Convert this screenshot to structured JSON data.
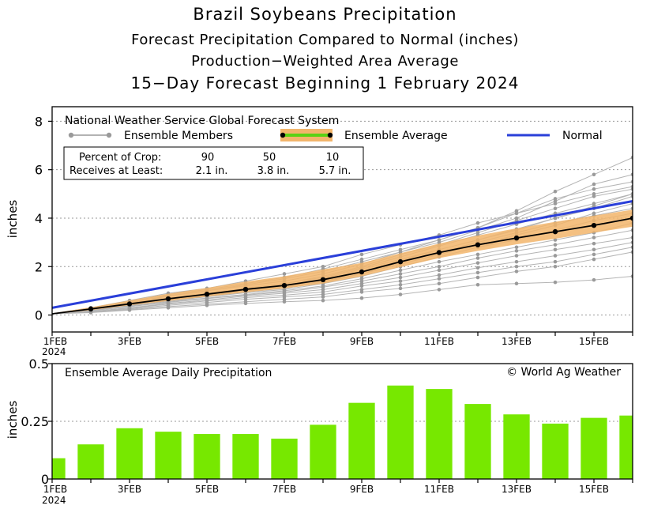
{
  "titles": {
    "line1": "Brazil Soybeans Precipitation",
    "line2": "Forecast Precipitation Compared to Normal (inches)",
    "line3": "Production−Weighted Area Average",
    "line4": "15−Day Forecast Beginning 1 February 2024"
  },
  "top_panel": {
    "model_label": "National Weather Service Global Forecast System",
    "legend": {
      "members": "Ensemble Members",
      "average": "Ensemble Average",
      "normal": "Normal"
    },
    "crop_box": {
      "row1_label": "Percent of Crop:",
      "row2_label": "Receives at Least:",
      "percents": [
        "90",
        "50",
        "10"
      ],
      "amounts": [
        "2.1 in.",
        "3.8 in.",
        "5.7 in."
      ]
    }
  },
  "bottom_panel": {
    "label": "Ensemble Average Daily Precipitation",
    "copyright": "© World Ag Weather"
  },
  "colors": {
    "normal": "#2a3fd9",
    "members": "#b4b4b4",
    "member_points": "#9a9a9a",
    "spread": "#f2b56b",
    "bars": "#77e800",
    "legend_avg_green": "#5ad214"
  },
  "chart_data": [
    {
      "type": "line",
      "title": "Forecast Precipitation Compared to Normal (inches)",
      "ylabel": "inches",
      "xlabel": "",
      "ylim": [
        -0.7,
        8.6
      ],
      "yticks": [
        "0",
        "2",
        "4",
        "6",
        "8"
      ],
      "x_tick_labels": [
        "1FEB",
        "3FEB",
        "5FEB",
        "7FEB",
        "9FEB",
        "11FEB",
        "13FEB",
        "15FEB"
      ],
      "x_tick_year": "2024",
      "x_day_range": [
        1,
        16
      ],
      "grid": "horizontal-dotted",
      "series": [
        {
          "name": "Ensemble Average",
          "x": [
            1,
            2,
            3,
            4,
            5,
            6,
            7,
            8,
            9,
            10,
            11,
            12,
            13,
            14,
            15,
            16
          ],
          "values": [
            0.05,
            0.25,
            0.46,
            0.67,
            0.86,
            1.06,
            1.22,
            1.46,
            1.78,
            2.2,
            2.58,
            2.9,
            3.18,
            3.44,
            3.7,
            4.0
          ]
        },
        {
          "name": "Normal",
          "x": [
            1,
            16
          ],
          "values": [
            0.3,
            4.7
          ]
        },
        {
          "name": "Ensemble Spread Lower",
          "x": [
            1,
            2,
            3,
            4,
            5,
            6,
            7,
            8,
            9,
            10,
            11,
            12,
            13,
            14,
            15,
            16
          ],
          "values": [
            0.04,
            0.2,
            0.4,
            0.58,
            0.76,
            0.94,
            1.1,
            1.3,
            1.6,
            1.98,
            2.35,
            2.65,
            2.92,
            3.15,
            3.4,
            3.65
          ]
        },
        {
          "name": "Ensemble Spread Upper",
          "x": [
            1,
            2,
            3,
            4,
            5,
            6,
            7,
            8,
            9,
            10,
            11,
            12,
            13,
            14,
            15,
            16
          ],
          "values": [
            0.07,
            0.32,
            0.6,
            0.88,
            1.12,
            1.38,
            1.6,
            1.88,
            2.15,
            2.55,
            2.95,
            3.28,
            3.58,
            3.85,
            4.1,
            4.35
          ]
        }
      ],
      "ensemble_members": [
        [
          0.05,
          0.3,
          0.55,
          0.85,
          1.05,
          1.3,
          1.55,
          1.9,
          2.3,
          2.7,
          3.1,
          3.6,
          4.3,
          5.1,
          5.8,
          6.5
        ],
        [
          0.05,
          0.28,
          0.5,
          0.78,
          1.0,
          1.25,
          1.5,
          1.8,
          2.2,
          2.6,
          3.0,
          3.5,
          4.0,
          4.7,
          5.4,
          5.8
        ],
        [
          0.05,
          0.25,
          0.5,
          0.8,
          1.0,
          1.2,
          1.4,
          1.7,
          2.1,
          2.6,
          3.1,
          3.6,
          4.2,
          4.8,
          5.2,
          5.5
        ],
        [
          0.05,
          0.3,
          0.6,
          0.9,
          1.1,
          1.4,
          1.7,
          2.0,
          2.5,
          2.9,
          3.3,
          3.8,
          4.2,
          4.6,
          5.0,
          5.3
        ],
        [
          0.05,
          0.25,
          0.45,
          0.7,
          0.9,
          1.1,
          1.3,
          1.6,
          2.0,
          2.5,
          2.9,
          3.4,
          3.9,
          4.4,
          4.9,
          5.2
        ],
        [
          0.05,
          0.22,
          0.42,
          0.65,
          0.85,
          1.05,
          1.2,
          1.5,
          1.9,
          2.3,
          2.7,
          3.1,
          3.5,
          4.0,
          4.4,
          4.9
        ],
        [
          0.05,
          0.2,
          0.4,
          0.62,
          0.8,
          1.0,
          1.15,
          1.4,
          1.7,
          2.1,
          2.5,
          2.9,
          3.3,
          3.7,
          4.2,
          4.6
        ],
        [
          0.05,
          0.2,
          0.38,
          0.58,
          0.75,
          0.92,
          1.05,
          1.3,
          1.6,
          2.0,
          2.4,
          2.8,
          3.1,
          3.5,
          3.9,
          4.2
        ],
        [
          0.05,
          0.18,
          0.35,
          0.55,
          0.7,
          0.85,
          1.0,
          1.2,
          1.5,
          1.85,
          2.2,
          2.5,
          2.8,
          3.1,
          3.4,
          3.8
        ],
        [
          0.05,
          0.18,
          0.35,
          0.52,
          0.68,
          0.82,
          0.95,
          1.15,
          1.4,
          1.7,
          2.0,
          2.35,
          2.65,
          2.9,
          3.2,
          3.5
        ],
        [
          0.05,
          0.15,
          0.3,
          0.48,
          0.62,
          0.78,
          0.9,
          1.05,
          1.3,
          1.55,
          1.85,
          2.15,
          2.45,
          2.7,
          2.95,
          3.2
        ],
        [
          0.05,
          0.15,
          0.28,
          0.45,
          0.58,
          0.72,
          0.82,
          0.95,
          1.2,
          1.4,
          1.65,
          1.95,
          2.2,
          2.45,
          2.7,
          3.0
        ],
        [
          0.05,
          0.12,
          0.25,
          0.4,
          0.52,
          0.65,
          0.75,
          0.85,
          1.05,
          1.25,
          1.5,
          1.75,
          2.0,
          2.2,
          2.5,
          2.8
        ],
        [
          0.05,
          0.12,
          0.22,
          0.35,
          0.45,
          0.55,
          0.65,
          0.75,
          0.95,
          1.1,
          1.3,
          1.55,
          1.8,
          2.0,
          2.3,
          2.6
        ],
        [
          0.05,
          0.1,
          0.2,
          0.3,
          0.4,
          0.48,
          0.55,
          0.6,
          0.7,
          0.85,
          1.05,
          1.25,
          1.3,
          1.35,
          1.45,
          1.6
        ],
        [
          0.05,
          0.2,
          0.4,
          0.6,
          0.78,
          0.95,
          1.1,
          1.35,
          1.7,
          2.15,
          2.6,
          3.0,
          3.4,
          3.8,
          4.1,
          4.4
        ],
        [
          0.05,
          0.22,
          0.42,
          0.62,
          0.82,
          1.0,
          1.18,
          1.45,
          1.8,
          2.25,
          2.7,
          3.1,
          3.55,
          4.0,
          4.5,
          5.0
        ],
        [
          0.05,
          0.25,
          0.48,
          0.7,
          0.9,
          1.1,
          1.3,
          1.55,
          1.95,
          2.4,
          2.85,
          3.3,
          3.75,
          4.2,
          4.6,
          5.0
        ]
      ]
    },
    {
      "type": "bar",
      "title": "Ensemble Average Daily Precipitation",
      "ylabel": "inches",
      "xlabel": "",
      "ylim": [
        0,
        0.5
      ],
      "yticks": [
        "0",
        "0.25",
        "0.5"
      ],
      "x_tick_labels": [
        "1FEB",
        "3FEB",
        "5FEB",
        "7FEB",
        "9FEB",
        "11FEB",
        "13FEB",
        "15FEB"
      ],
      "x_tick_year": "2024",
      "categories": [
        "1FEB",
        "2FEB",
        "3FEB",
        "4FEB",
        "5FEB",
        "6FEB",
        "7FEB",
        "8FEB",
        "9FEB",
        "10FEB",
        "11FEB",
        "12FEB",
        "13FEB",
        "14FEB",
        "15FEB",
        "16FEB"
      ],
      "values": [
        0.09,
        0.15,
        0.22,
        0.205,
        0.195,
        0.195,
        0.175,
        0.235,
        0.33,
        0.405,
        0.39,
        0.325,
        0.28,
        0.24,
        0.265,
        0.275
      ]
    }
  ]
}
